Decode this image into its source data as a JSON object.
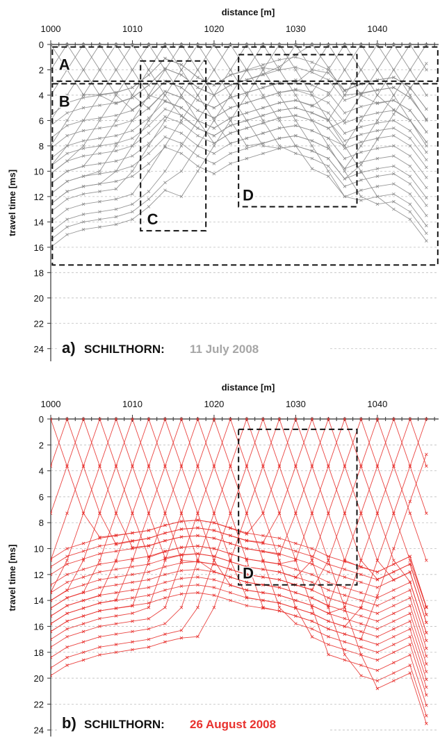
{
  "chart_data": [
    {
      "type": "line",
      "panel_label": "a)",
      "site": "SCHILTHORN:",
      "date": "11 July 2008",
      "xlabel": "distance [m]",
      "ylabel": "travel time [ms]",
      "xlim": [
        1000,
        1047.5
      ],
      "ylim": [
        0,
        25
      ],
      "y_inverted": true,
      "grid": "horizontal",
      "line_color": "#8c8c8c",
      "date_color": "#a6a6a6",
      "x_ticks": [
        1000,
        1010,
        1020,
        1030,
        1040
      ],
      "y_ticks": [
        0,
        2,
        4,
        6,
        8,
        10,
        12,
        14,
        16,
        18,
        20,
        22,
        24
      ],
      "x_tick_labels": [
        "1000",
        "1010",
        "1020",
        "1030",
        "1040"
      ],
      "y_tick_labels": [
        "0",
        "2",
        "4",
        "6",
        "8",
        "10",
        "12",
        "14",
        "16",
        "18",
        "20",
        "22",
        "24"
      ],
      "receivers_x": [
        1000,
        1002,
        1004,
        1006,
        1008,
        1010,
        1012,
        1014,
        1016,
        1018,
        1020,
        1022,
        1024,
        1026,
        1028,
        1030,
        1032,
        1034,
        1036,
        1038,
        1040,
        1042,
        1044,
        1046
      ],
      "shots_x": [
        1000,
        1002,
        1004,
        1006,
        1008,
        1010,
        1012,
        1014,
        1016,
        1018,
        1020,
        1022,
        1024,
        1026,
        1028,
        1030,
        1032,
        1034,
        1036,
        1038,
        1040,
        1042,
        1044,
        1046,
        1047.5
      ],
      "first_arrival_velocity": 1000,
      "first_arrival_max_delay": 2.6,
      "shape_amplitude": 4.0,
      "shape_decay": 0.7,
      "deep_profile": [
        [
          1000,
          9.0
        ],
        [
          1002,
          8.0
        ],
        [
          1004,
          7.6
        ],
        [
          1006,
          7.4
        ],
        [
          1008,
          7.2
        ],
        [
          1010,
          6.8
        ],
        [
          1012,
          5.8
        ],
        [
          1014,
          4.5
        ],
        [
          1016,
          5.0
        ],
        [
          1018,
          6.0
        ],
        [
          1020,
          6.6
        ],
        [
          1022,
          5.8
        ],
        [
          1024,
          5.4
        ],
        [
          1026,
          5.0
        ],
        [
          1028,
          4.6
        ],
        [
          1030,
          4.4
        ],
        [
          1032,
          4.8
        ],
        [
          1034,
          5.4
        ],
        [
          1036,
          7.0
        ],
        [
          1038,
          6.5
        ],
        [
          1040,
          6.2
        ],
        [
          1042,
          6.0
        ],
        [
          1044,
          6.8
        ],
        [
          1046,
          8.5
        ]
      ],
      "deep_offsets": [
        -3.4,
        -2.6,
        -1.6,
        -0.8,
        0.0,
        0.6,
        1.2,
        2.0,
        2.8,
        3.6,
        4.2,
        5.0,
        5.8,
        6.4,
        7.0
      ],
      "boxes": [
        {
          "label": "A",
          "x0": 1000.2,
          "x1": 1047.4,
          "y0": 0.2,
          "y1": 2.9,
          "label_x": 1001.0,
          "label_y": 2.0
        },
        {
          "label": "B",
          "x0": 1000.2,
          "x1": 1047.4,
          "y0": 3.1,
          "y1": 17.4,
          "label_x": 1001.0,
          "label_y": 4.9
        },
        {
          "label": "C",
          "x0": 1011.0,
          "x1": 1019.0,
          "y0": 1.3,
          "y1": 14.7,
          "label_x": 1011.8,
          "label_y": 14.2
        },
        {
          "label": "D",
          "x0": 1023.0,
          "x1": 1037.5,
          "y0": 0.8,
          "y1": 12.8,
          "label_x": 1023.5,
          "label_y": 12.3
        }
      ]
    },
    {
      "type": "line",
      "panel_label": "b)",
      "site": "SCHILTHORN:",
      "date": "26 August 2008",
      "xlabel": "distance [m]",
      "ylabel": "travel time [ms]",
      "xlim": [
        1000,
        1047.5
      ],
      "ylim": [
        0,
        24.5
      ],
      "y_inverted": true,
      "grid": "horizontal",
      "line_color": "#e8312e",
      "date_color": "#e8312e",
      "x_ticks": [
        1000,
        1010,
        1020,
        1030,
        1040
      ],
      "y_ticks": [
        0,
        2,
        4,
        6,
        8,
        10,
        12,
        14,
        16,
        18,
        20,
        22,
        24
      ],
      "x_tick_labels": [
        "1000",
        "1010",
        "1020",
        "1030",
        "1040"
      ],
      "y_tick_labels": [
        "0",
        "2",
        "4",
        "6",
        "8",
        "10",
        "12",
        "14",
        "16",
        "18",
        "20",
        "22",
        "24"
      ],
      "receivers_x": [
        1000,
        1002,
        1004,
        1006,
        1008,
        1010,
        1012,
        1014,
        1016,
        1018,
        1020,
        1022,
        1024,
        1026,
        1028,
        1030,
        1032,
        1034,
        1036,
        1038,
        1040,
        1042,
        1044,
        1046
      ],
      "shots_x": [
        1000,
        1002,
        1004,
        1006,
        1008,
        1010,
        1012,
        1014,
        1016,
        1018,
        1020,
        1022,
        1024,
        1026,
        1028,
        1030,
        1032,
        1034,
        1036,
        1038,
        1040,
        1042,
        1044,
        1046,
        1047.5
      ],
      "first_arrival_velocity": 550,
      "first_arrival_max_delay": 10.5,
      "shape_amplitude": 1.6,
      "shape_decay": 0.5,
      "deep_profile": [
        [
          1000,
          13.8
        ],
        [
          1002,
          13.0
        ],
        [
          1004,
          12.6
        ],
        [
          1006,
          12.2
        ],
        [
          1008,
          12.0
        ],
        [
          1010,
          11.8
        ],
        [
          1012,
          11.6
        ],
        [
          1014,
          11.2
        ],
        [
          1016,
          10.9
        ],
        [
          1018,
          10.8
        ],
        [
          1020,
          11.0
        ],
        [
          1022,
          11.4
        ],
        [
          1024,
          11.8
        ],
        [
          1026,
          12.0
        ],
        [
          1028,
          12.2
        ],
        [
          1030,
          12.6
        ],
        [
          1032,
          13.0
        ],
        [
          1034,
          13.6
        ],
        [
          1036,
          14.0
        ],
        [
          1038,
          14.4
        ],
        [
          1040,
          14.8
        ],
        [
          1042,
          14.2
        ],
        [
          1044,
          13.6
        ],
        [
          1046,
          17.5
        ]
      ],
      "deep_offsets": [
        -3.0,
        -2.4,
        -1.8,
        -1.0,
        -0.4,
        0.2,
        0.8,
        1.4,
        2.0,
        2.6,
        3.2,
        3.8,
        4.6,
        5.4,
        6.0
      ],
      "boxes": [
        {
          "label": "D",
          "x0": 1023.0,
          "x1": 1037.5,
          "y0": 0.8,
          "y1": 12.8,
          "label_x": 1023.5,
          "label_y": 12.3
        }
      ]
    }
  ]
}
